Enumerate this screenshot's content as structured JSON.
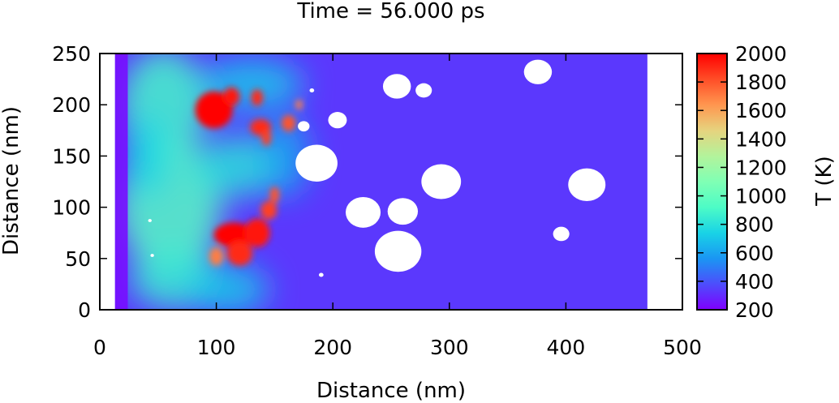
{
  "chart_data": {
    "type": "heatmap",
    "title": "Time = 56.000 ps",
    "xlabel": "Distance (nm)",
    "ylabel": "Distance (nm)",
    "xlim": [
      0,
      500
    ],
    "ylim": [
      0,
      250
    ],
    "x_ticks": [
      "0",
      "100",
      "200",
      "300",
      "400",
      "500"
    ],
    "y_ticks": [
      "0",
      "50",
      "100",
      "150",
      "200",
      "250"
    ],
    "colorbar": {
      "label": "T (K)",
      "range": [
        200,
        2000
      ],
      "ticks": [
        "200",
        "400",
        "600",
        "800",
        "1000",
        "1200",
        "1400",
        "1600",
        "1800",
        "2000"
      ],
      "colormap": [
        "#7f00ff",
        "#4d4dfc",
        "#1a96f3",
        "#19d3e6",
        "#4dfcc6",
        "#80ffb4",
        "#b3f39b",
        "#e6d37e",
        "#ff964f",
        "#ff4d27",
        "#ff0000"
      ]
    },
    "field_extent": {
      "x": [
        13,
        470
      ],
      "y": [
        0,
        250
      ]
    },
    "background_temperature": 330,
    "hot_regions": [
      {
        "cx": 98,
        "cy": 195,
        "rx": 16,
        "ry": 18,
        "T": 2000
      },
      {
        "cx": 113,
        "cy": 208,
        "rx": 7,
        "ry": 9,
        "T": 1950
      },
      {
        "cx": 135,
        "cy": 207,
        "rx": 5,
        "ry": 8,
        "T": 1900
      },
      {
        "cx": 138,
        "cy": 178,
        "rx": 9,
        "ry": 8,
        "T": 1900
      },
      {
        "cx": 143,
        "cy": 168,
        "rx": 4,
        "ry": 8,
        "T": 1850
      },
      {
        "cx": 162,
        "cy": 182,
        "rx": 6,
        "ry": 8,
        "T": 1800
      },
      {
        "cx": 171,
        "cy": 200,
        "rx": 3,
        "ry": 5,
        "T": 1700
      },
      {
        "cx": 115,
        "cy": 73,
        "rx": 17,
        "ry": 12,
        "T": 2000
      },
      {
        "cx": 135,
        "cy": 75,
        "rx": 11,
        "ry": 14,
        "T": 1950
      },
      {
        "cx": 120,
        "cy": 55,
        "rx": 11,
        "ry": 12,
        "T": 1900
      },
      {
        "cx": 145,
        "cy": 97,
        "rx": 7,
        "ry": 9,
        "T": 1850
      },
      {
        "cx": 150,
        "cy": 112,
        "rx": 4,
        "ry": 8,
        "T": 1800
      },
      {
        "cx": 100,
        "cy": 52,
        "rx": 6,
        "ry": 9,
        "T": 1700
      }
    ],
    "warm_regions": [
      {
        "cx": 55,
        "cy": 200,
        "rx": 38,
        "ry": 55,
        "T": 900
      },
      {
        "cx": 60,
        "cy": 100,
        "rx": 45,
        "ry": 65,
        "T": 950
      },
      {
        "cx": 65,
        "cy": 30,
        "rx": 40,
        "ry": 30,
        "T": 850
      },
      {
        "cx": 120,
        "cy": 140,
        "rx": 40,
        "ry": 30,
        "T": 800
      },
      {
        "cx": 130,
        "cy": 220,
        "rx": 45,
        "ry": 25,
        "T": 700
      },
      {
        "cx": 110,
        "cy": 20,
        "rx": 35,
        "ry": 25,
        "T": 700
      },
      {
        "cx": 160,
        "cy": 150,
        "rx": 20,
        "ry": 40,
        "T": 600
      },
      {
        "cx": 40,
        "cy": 150,
        "rx": 20,
        "ry": 40,
        "T": 750
      }
    ],
    "cool_edge": {
      "x": [
        13,
        24
      ],
      "T": 230
    },
    "voids": [
      {
        "cx": 186,
        "cy": 143,
        "r": 18
      },
      {
        "cx": 204,
        "cy": 185,
        "r": 8
      },
      {
        "cx": 175,
        "cy": 179,
        "r": 5
      },
      {
        "cx": 226,
        "cy": 95,
        "r": 15
      },
      {
        "cx": 260,
        "cy": 96,
        "r": 13
      },
      {
        "cx": 256,
        "cy": 57,
        "r": 20
      },
      {
        "cx": 293,
        "cy": 125,
        "r": 17
      },
      {
        "cx": 255,
        "cy": 218,
        "r": 12
      },
      {
        "cx": 278,
        "cy": 214,
        "r": 7
      },
      {
        "cx": 376,
        "cy": 232,
        "r": 12
      },
      {
        "cx": 418,
        "cy": 122,
        "r": 16
      },
      {
        "cx": 396,
        "cy": 74,
        "r": 7
      },
      {
        "cx": 182,
        "cy": 214,
        "r": 2
      },
      {
        "cx": 190,
        "cy": 34,
        "r": 2
      },
      {
        "cx": 43,
        "cy": 87,
        "r": 1.5
      },
      {
        "cx": 45,
        "cy": 53,
        "r": 1.5
      }
    ]
  }
}
